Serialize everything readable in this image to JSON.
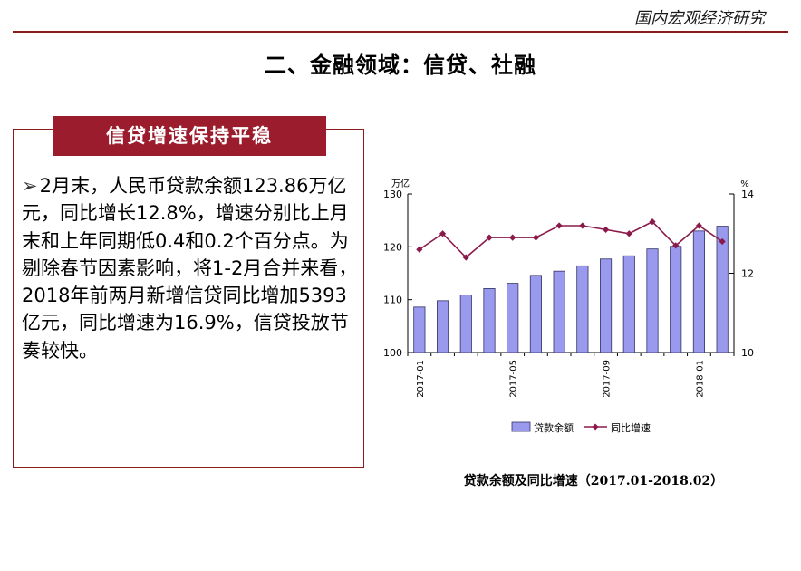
{
  "header": {
    "brand": "国内宏观经济研究"
  },
  "slide": {
    "title": "二、金融领域：信贷、社融"
  },
  "box": {
    "title": "信贷增速保持平稳",
    "bullet": "➢",
    "body": "2月末，人民币贷款余额123.86万亿元，同比增长12.8%，增速分别比上月末和上年同期低0.4和0.2个百分点。为剔除春节因素影响，将1-2月合并来看，2018年前两月新增信贷同比增加5393亿元，同比增速为16.9%，信贷投放节奏较快。"
  },
  "chart_data": {
    "type": "bar+line",
    "x": [
      "2017-01",
      "2017-02",
      "2017-03",
      "2017-04",
      "2017-05",
      "2017-06",
      "2017-07",
      "2017-08",
      "2017-09",
      "2017-10",
      "2017-11",
      "2017-12",
      "2018-01",
      "2018-02"
    ],
    "x_tick_labels": [
      "2017-01",
      "2017-05",
      "2017-09",
      "2018-01"
    ],
    "y_left": {
      "unit_label": "万亿",
      "ylim": [
        100,
        130
      ],
      "ticks": [
        100,
        110,
        120,
        130
      ]
    },
    "y_right": {
      "unit_label": "%",
      "ylim": [
        10,
        14
      ],
      "ticks": [
        10,
        12,
        14
      ]
    },
    "series": [
      {
        "name": "贷款余额",
        "kind": "bar",
        "axis": "left",
        "color": "#9999ee",
        "values": [
          108.6,
          109.8,
          110.9,
          112.1,
          113.1,
          114.6,
          115.4,
          116.4,
          117.7,
          118.3,
          119.6,
          120.1,
          123.0,
          123.9
        ]
      },
      {
        "name": "同比增速",
        "kind": "line",
        "axis": "right",
        "color": "#8b1a4a",
        "values": [
          12.6,
          13.0,
          12.4,
          12.9,
          12.9,
          12.9,
          13.2,
          13.2,
          13.1,
          13.0,
          13.3,
          12.7,
          13.2,
          12.8
        ]
      }
    ],
    "grid": false,
    "legend_position": "bottom",
    "caption": "贷款余额及同比增速（2017.01-2018.02）"
  }
}
